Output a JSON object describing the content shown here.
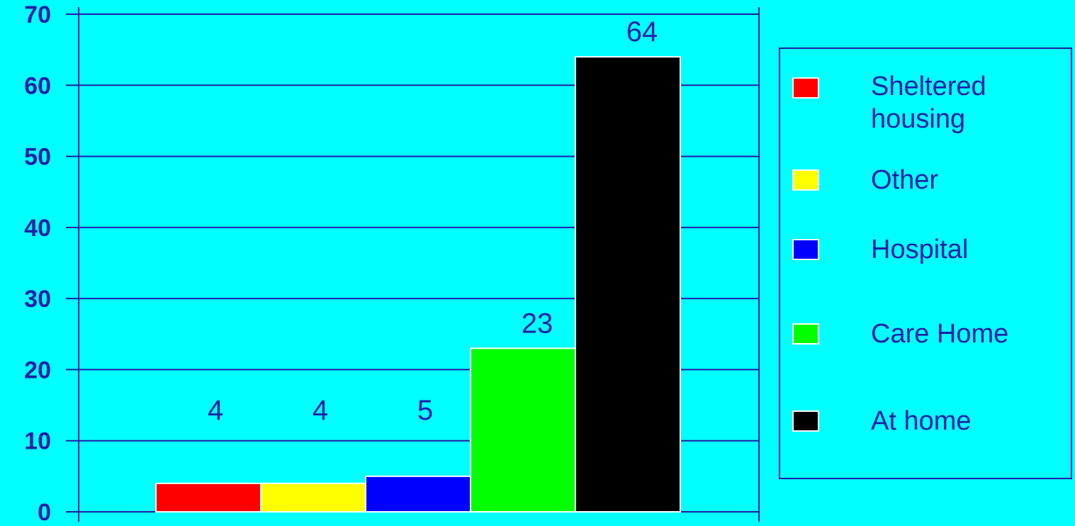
{
  "chart_data": {
    "type": "bar",
    "categories": [
      "Sheltered housing",
      "Other",
      "Hospital",
      "Care Home",
      "At home"
    ],
    "values": [
      4,
      4,
      5,
      23,
      64
    ],
    "colors": [
      "#FF0000",
      "#FFFF00",
      "#0000FF",
      "#00FF00",
      "#000000"
    ],
    "ylim": [
      0,
      70
    ],
    "yticks": [
      "0",
      "10",
      "20",
      "30",
      "40",
      "50",
      "60",
      "70"
    ],
    "grid": true,
    "legend_position": "right",
    "data_labels": [
      "4",
      "4",
      "5",
      "23",
      "64"
    ]
  },
  "legend": {
    "items": [
      {
        "label": "Sheltered housing",
        "color": "#FF0000"
      },
      {
        "label": "Other",
        "color": "#FFFF00"
      },
      {
        "label": "Hospital",
        "color": "#0000FF"
      },
      {
        "label": "Care Home",
        "color": "#00FF00"
      },
      {
        "label": "At home",
        "color": "#000000"
      }
    ]
  },
  "colors": {
    "background": "#00FFFF",
    "axis": "#1F1FA8",
    "text": "#1F1FA8"
  }
}
